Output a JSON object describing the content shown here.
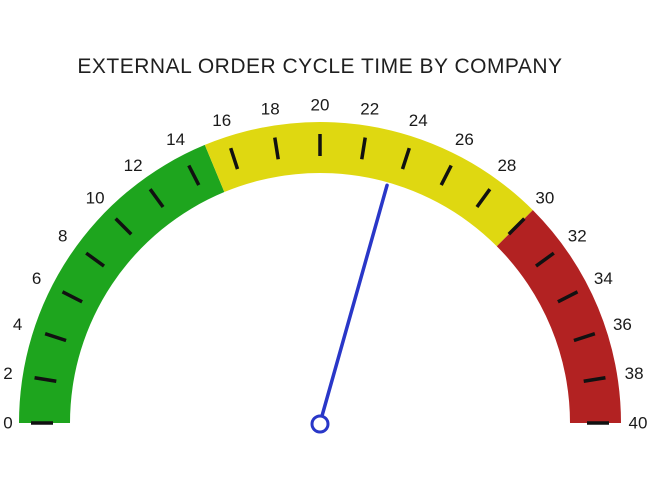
{
  "chart_data": {
    "type": "gauge",
    "title": "EXTERNAL ORDER CYCLE TIME BY COMPANY",
    "min": 0,
    "max": 40,
    "tick_interval": 2,
    "tick_labels": [
      "0",
      "2",
      "4",
      "6",
      "8",
      "10",
      "12",
      "14",
      "16",
      "18",
      "20",
      "22",
      "24",
      "26",
      "28",
      "30",
      "32",
      "34",
      "36",
      "38",
      "40"
    ],
    "needle_value": 23.5,
    "zones": [
      {
        "name": "green",
        "from": 0,
        "to": 15,
        "color": "#1EA51E"
      },
      {
        "name": "yellow",
        "from": 15,
        "to": 30,
        "color": "#DFD811"
      },
      {
        "name": "red",
        "from": 30,
        "to": 40,
        "color": "#B22222"
      }
    ],
    "colors": {
      "needle": "#2937C8",
      "tick": "#111111",
      "label": "#1a1a1a",
      "title": "#1f1f1f",
      "background": "#ffffff"
    },
    "layout_hints": {
      "start_angle_deg": 180,
      "end_angle_deg": 0,
      "legend": "none",
      "grid": "off"
    }
  }
}
